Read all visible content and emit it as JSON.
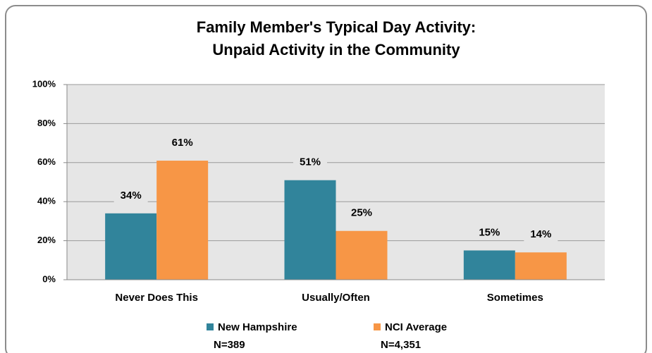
{
  "chart_data": {
    "type": "bar",
    "title": "Family Member's Typical Day Activity:",
    "subtitle": "Unpaid Activity in the Community",
    "categories": [
      "Never Does This",
      "Usually/Often",
      "Sometimes"
    ],
    "series": [
      {
        "name": "New Hampshire",
        "sample": "N=389",
        "color": "#31849b",
        "values": [
          34,
          51,
          15
        ],
        "value_labels": [
          "34%",
          "51%",
          "15%"
        ]
      },
      {
        "name": "NCI Average",
        "sample": "N=4,351",
        "color": "#f79646",
        "values": [
          61,
          25,
          14
        ],
        "value_labels": [
          "61%",
          "25%",
          "14%"
        ]
      }
    ],
    "ylim": [
      0,
      100
    ],
    "yticks": [
      {
        "value": 0,
        "label": "0%"
      },
      {
        "value": 20,
        "label": "20%"
      },
      {
        "value": 40,
        "label": "40%"
      },
      {
        "value": 60,
        "label": "60%"
      },
      {
        "value": 80,
        "label": "80%"
      },
      {
        "value": 100,
        "label": "100%"
      }
    ],
    "grid": true,
    "legend": "bottom"
  }
}
